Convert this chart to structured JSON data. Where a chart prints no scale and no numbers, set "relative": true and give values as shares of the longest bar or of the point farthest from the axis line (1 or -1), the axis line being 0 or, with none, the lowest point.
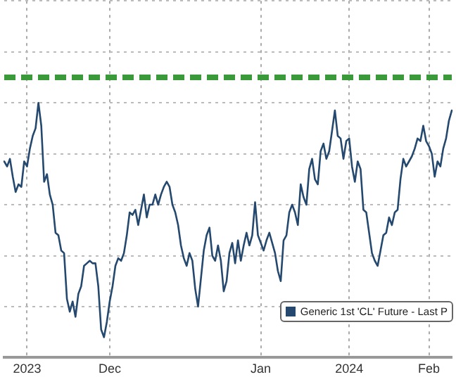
{
  "chart_data": {
    "type": "line",
    "relative": true,
    "grid": true,
    "legend": "bottom right",
    "line_style": "solid",
    "marker": "none",
    "categories": [
      null,
      null,
      null,
      null,
      null,
      null,
      null,
      null,
      "2023",
      null,
      null,
      null,
      null,
      null,
      null,
      null,
      null,
      null,
      null,
      null,
      null,
      null,
      null,
      null,
      null,
      null,
      null,
      null,
      null,
      null,
      null,
      null,
      null,
      null,
      null,
      null,
      null,
      "Dec",
      null,
      null,
      null,
      null,
      null,
      null,
      null,
      null,
      null,
      null,
      null,
      null,
      null,
      null,
      null,
      null,
      null,
      null,
      null,
      null,
      null,
      null,
      null,
      null,
      null,
      null,
      null,
      null,
      null,
      null,
      null,
      null,
      null,
      null,
      null,
      null,
      null,
      null,
      null,
      null,
      null,
      null,
      null,
      null,
      null,
      null,
      null,
      null,
      null,
      null,
      null,
      null,
      "Jan",
      null,
      null,
      null,
      null,
      null,
      null,
      null,
      null,
      null,
      null,
      null,
      null,
      null,
      null,
      null,
      null,
      null,
      null,
      null,
      null,
      null,
      null,
      null,
      null,
      null,
      null,
      null,
      null,
      null,
      null,
      "2024",
      null,
      null,
      null,
      null,
      null,
      null,
      null,
      null,
      null,
      null,
      null,
      null,
      null,
      null,
      null,
      null,
      null,
      null,
      null,
      null,
      null,
      null,
      null,
      null,
      null,
      null,
      null,
      "Feb",
      null,
      null,
      null,
      null,
      null,
      null,
      null,
      null
    ],
    "series": [
      {
        "name": "Generic 1st 'CL' Future - Last P",
        "color": "#24486e",
        "values": [
          0.77,
          0.75,
          0.78,
          0.71,
          0.65,
          0.68,
          0.67,
          0.77,
          0.75,
          0.82,
          0.87,
          0.9,
          1,
          0.91,
          0.69,
          0.72,
          0.64,
          0.6,
          0.49,
          0.48,
          0.42,
          0.41,
          0.23,
          0.18,
          0.22,
          0.16,
          0.25,
          0.28,
          0.36,
          0.37,
          0.38,
          0.37,
          0.37,
          0.28,
          0.11,
          0.08,
          0.14,
          0.22,
          0.28,
          0.36,
          0.39,
          0.38,
          0.41,
          0.48,
          0.57,
          0.56,
          0.58,
          0.52,
          0.58,
          0.64,
          0.55,
          0.6,
          0.6,
          0.64,
          0.6,
          0.64,
          0.67,
          0.69,
          0.67,
          0.6,
          0.57,
          0.52,
          0.44,
          0.39,
          0.36,
          0.41,
          0.38,
          0.27,
          0.2,
          0.31,
          0.42,
          0.48,
          0.51,
          0.4,
          0.38,
          0.44,
          0.38,
          0.26,
          0.3,
          0.41,
          0.45,
          0.37,
          0.46,
          0.38,
          0.44,
          0.49,
          0.44,
          0.48,
          0.61,
          0.48,
          0.45,
          0.42,
          0.46,
          0.49,
          0.45,
          0.41,
          0.34,
          0.3,
          0.46,
          0.48,
          0.57,
          0.6,
          0.57,
          0.52,
          0.68,
          0.63,
          0.6,
          0.74,
          0.78,
          0.7,
          0.68,
          0.81,
          0.84,
          0.78,
          0.81,
          0.89,
          0.97,
          0.87,
          0.86,
          0.78,
          0.85,
          0.86,
          0.75,
          0.69,
          0.77,
          0.74,
          0.58,
          0.57,
          0.49,
          0.41,
          0.38,
          0.36,
          0.42,
          0.48,
          0.49,
          0.55,
          0.52,
          0.57,
          0.58,
          0.7,
          0.78,
          0.75,
          0.77,
          0.79,
          0.82,
          0.86,
          0.85,
          0.91,
          0.85,
          0.83,
          0.8,
          0.71,
          0.77,
          0.75,
          0.82,
          0.86,
          0.93,
          0.97
        ]
      }
    ],
    "ref_lines": [
      {
        "axis": "y",
        "value": 1.1,
        "color": "#3a9a3a",
        "line_style": "dashed"
      }
    ]
  }
}
